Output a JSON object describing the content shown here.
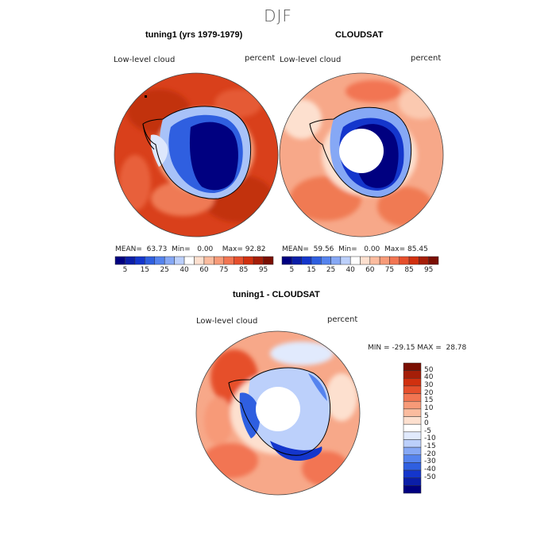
{
  "figure": {
    "season_title": "DJF",
    "colors": {
      "land_dark": "#000080",
      "land_mid": "#1a2fd4",
      "ocean_red": "#d63a1a",
      "ocean_orange": "#f07a52",
      "ocean_light": "#fbc9b0"
    }
  },
  "panel_model": {
    "title": "tuning1 (yrs 1979-1979)",
    "variable_label": "Low-level cloud",
    "units_label": "percent",
    "mean_label": "MEAN=",
    "mean_value": "63.73",
    "min_label": "Min=",
    "min_value": "0.00",
    "max_label": "Max=",
    "max_value": "92.82"
  },
  "panel_obs": {
    "title": "CLOUDSAT",
    "variable_label": "Low-level cloud",
    "units_label": "percent",
    "mean_label": "MEAN=",
    "mean_value": "59.56",
    "min_label": "Min=",
    "min_value": "0.00",
    "max_label": "Max=",
    "max_value": "85.45"
  },
  "abs_colorbar": {
    "colors": [
      "#000080",
      "#0b1ea8",
      "#1436cc",
      "#2f5fe0",
      "#5583ee",
      "#86a8f5",
      "#bcd0fb",
      "#ffffff",
      "#fde0cf",
      "#fbbc9f",
      "#f79a78",
      "#f27552",
      "#e64f2c",
      "#d1300f",
      "#a51e08",
      "#7a0f02"
    ],
    "tick_labels": [
      "5",
      "15",
      "25",
      "40",
      "60",
      "75",
      "85",
      "95"
    ]
  },
  "panel_diff": {
    "title": "tuning1 - CLOUDSAT",
    "variable_label": "Low-level cloud",
    "units_label": "percent",
    "minmax_text": "MIN = -29.15 MAX =  28.78"
  },
  "diff_colorbar": {
    "colors": [
      "#000080",
      "#0b1ea8",
      "#1436cc",
      "#2f5fe0",
      "#5583ee",
      "#86a8f5",
      "#bcd0fb",
      "#e1eafd",
      "#ffffff",
      "#fde0cf",
      "#fbbc9f",
      "#f79a78",
      "#f27552",
      "#e64f2c",
      "#d1300f",
      "#a51e08",
      "#7a0f02"
    ],
    "tick_labels": [
      "50",
      "40",
      "30",
      "20",
      "15",
      "10",
      "5",
      "0",
      "-5",
      "-10",
      "-15",
      "-20",
      "-30",
      "-40",
      "-50"
    ]
  }
}
